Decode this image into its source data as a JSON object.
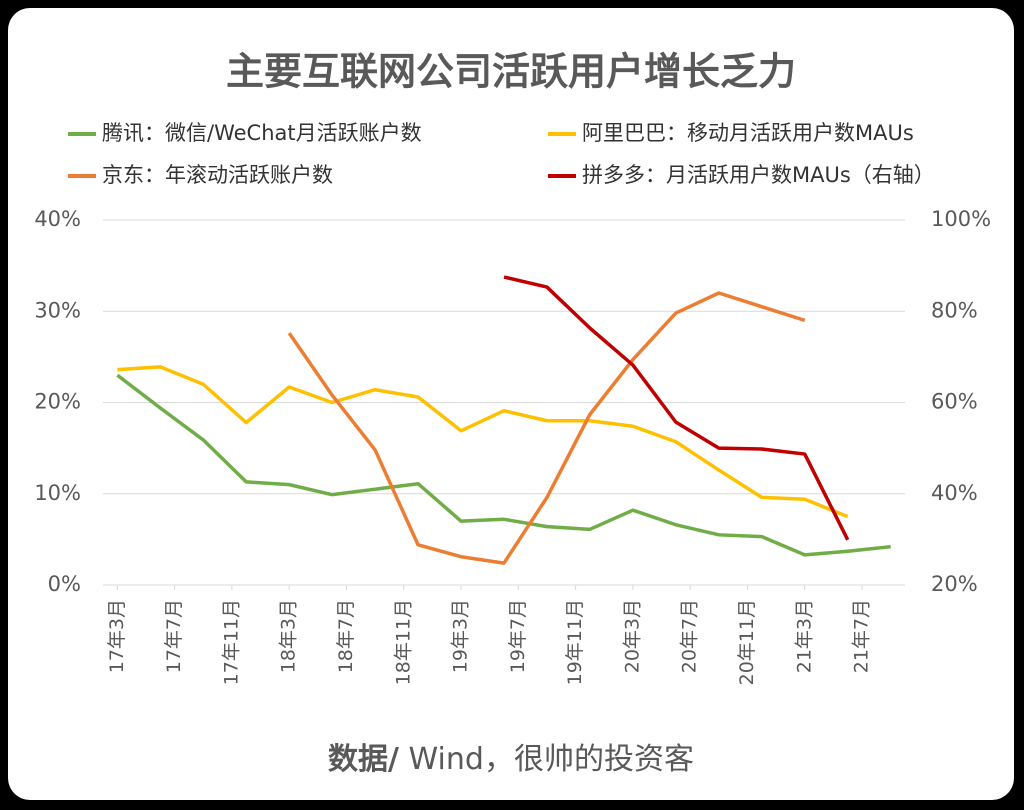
{
  "chart_data": {
    "type": "line",
    "title": "主要互联网公司活跃用户增长乏力",
    "source_label": "数据/",
    "source_text": " Wind，很帅的投资客",
    "xlim": [
      -1,
      55
    ],
    "xticks": [
      {
        "value": 0,
        "label": "17年3月"
      },
      {
        "value": 4,
        "label": "17年7月"
      },
      {
        "value": 8,
        "label": "17年11月"
      },
      {
        "value": 12,
        "label": "18年3月"
      },
      {
        "value": 16,
        "label": "18年7月"
      },
      {
        "value": 20,
        "label": "18年11月"
      },
      {
        "value": 24,
        "label": "19年3月"
      },
      {
        "value": 28,
        "label": "19年7月"
      },
      {
        "value": 32,
        "label": "19年11月"
      },
      {
        "value": 36,
        "label": "20年3月"
      },
      {
        "value": 40,
        "label": "20年7月"
      },
      {
        "value": 44,
        "label": "20年11月"
      },
      {
        "value": 48,
        "label": "21年3月"
      },
      {
        "value": 52,
        "label": "21年7月"
      }
    ],
    "ylim": [
      0,
      40
    ],
    "yticks": [
      {
        "value": 0,
        "label": "0%"
      },
      {
        "value": 10,
        "label": "10%"
      },
      {
        "value": 20,
        "label": "20%"
      },
      {
        "value": 30,
        "label": "30%"
      },
      {
        "value": 40,
        "label": "40%"
      }
    ],
    "y2lim": [
      20,
      100
    ],
    "y2ticks": [
      {
        "value": 20,
        "label": "20%"
      },
      {
        "value": 40,
        "label": "40%"
      },
      {
        "value": 60,
        "label": "60%"
      },
      {
        "value": 80,
        "label": "80%"
      },
      {
        "value": 100,
        "label": "100%"
      }
    ],
    "grid": true,
    "series": [
      {
        "name": "腾讯：微信/WeChat月活跃账户数",
        "color": "#70ad47",
        "x": [
          0,
          3,
          6,
          9,
          12,
          15,
          18,
          21,
          24,
          27,
          30,
          33,
          36,
          39,
          42,
          45,
          48,
          51,
          54
        ],
        "values": [
          23.0,
          19.4,
          15.9,
          11.3,
          11.0,
          9.9,
          10.5,
          11.1,
          7.0,
          7.2,
          6.4,
          6.1,
          8.2,
          6.6,
          5.5,
          5.3,
          3.3,
          3.7,
          4.2
        ]
      },
      {
        "name": "阿里巴巴：移动月活跃用户数MAUs",
        "color": "#ffc000",
        "x": [
          0,
          3,
          6,
          9,
          12,
          15,
          18,
          21,
          24,
          27,
          30,
          33,
          36,
          39,
          42,
          45,
          48,
          51
        ],
        "values": [
          23.6,
          23.9,
          22.0,
          17.8,
          21.7,
          20.0,
          21.4,
          20.6,
          16.9,
          19.1,
          18.0,
          18.0,
          17.4,
          15.7,
          12.6,
          9.6,
          9.4,
          7.5
        ]
      },
      {
        "name": "京东：年滚动活跃账户数",
        "color": "#ed7d31",
        "x": [
          12,
          15,
          18,
          21,
          24,
          27,
          30,
          33,
          36,
          39,
          42,
          45,
          48
        ],
        "values": [
          27.6,
          20.8,
          14.8,
          4.4,
          3.1,
          2.4,
          9.6,
          18.7,
          24.7,
          29.8,
          32.0,
          30.5,
          29.0
        ]
      },
      {
        "name": "拼多多：月活跃用户数MAUs（右轴）",
        "color": "#c00000",
        "axis": "y2",
        "x": [
          27,
          30,
          33,
          36,
          39,
          42,
          45,
          48,
          51
        ],
        "values": [
          87.5,
          85.3,
          76.3,
          68.2,
          55.7,
          50.0,
          49.8,
          48.7,
          29.9
        ]
      }
    ]
  }
}
